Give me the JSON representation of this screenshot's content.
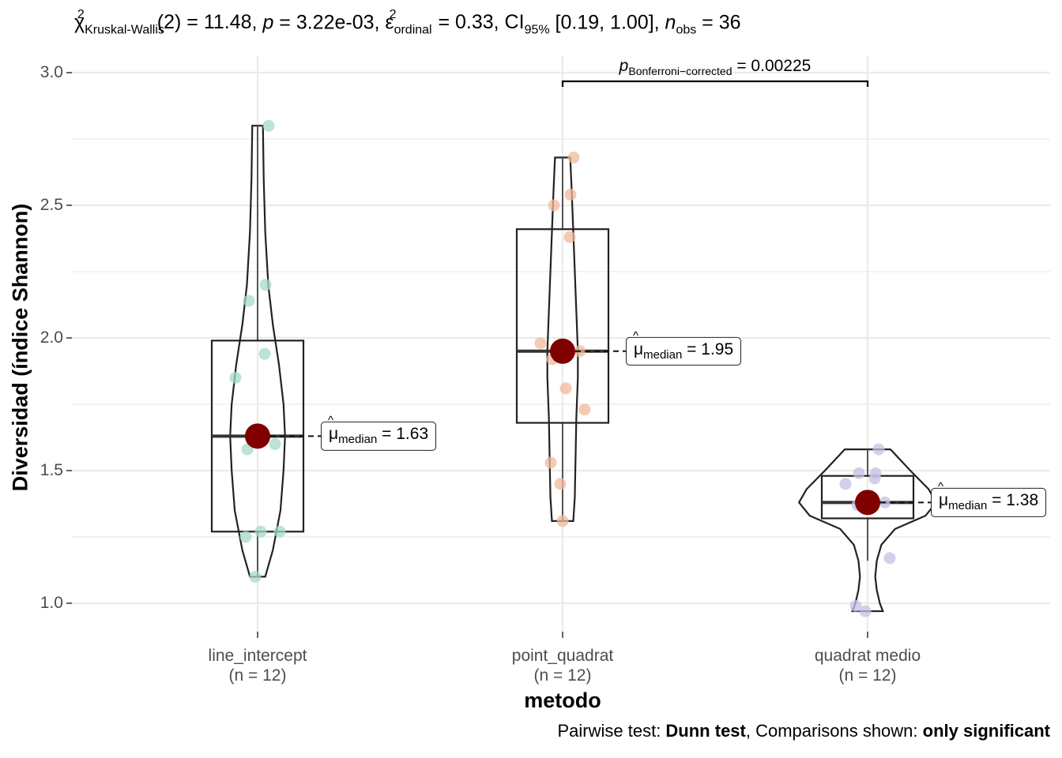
{
  "subtitle": {
    "chi": "χ",
    "chi_sup": "2",
    "chi_sub": "Kruskal-Wallis",
    "part1": "(2) = 11.48, ",
    "p": "p",
    "part2": " = 3.22e-03, ",
    "eps": "ε",
    "eps_sup": "2",
    "eps_sub": "ordinal",
    "part3": " = 0.33, CI",
    "ci_sub": "95%",
    "part4": " [0.19, 1.00], ",
    "n": "n",
    "n_sub": "obs",
    "part5": " = 36"
  },
  "caption": {
    "prefix": "Pairwise test: ",
    "test": "Dunn test",
    "mid": ", Comparisons shown: ",
    "shown": "only significant"
  },
  "pairwise": {
    "p": "p",
    "p_sub": "Bonferroni−corrected",
    "value_text": " = 0.00225",
    "from": "point_quadrat",
    "to": "quadrat medio"
  },
  "chart_data": {
    "type": "violin-box-scatter",
    "xlabel": "metodo",
    "ylabel": "Diversidad (índice Shannon)",
    "ylim": [
      0.8,
      3.07
    ],
    "yticks": [
      "1.0",
      "1.5",
      "2.0",
      "2.5",
      "3.0"
    ],
    "grid": true,
    "groups": [
      {
        "name": "line_intercept",
        "n_label": "(n = 12)",
        "color": "#a6d9c4",
        "median": 1.63,
        "median_label": "= 1.63",
        "box": {
          "q1": 1.27,
          "median": 1.63,
          "q3": 1.99,
          "whisker_low": 1.1,
          "whisker_high": 2.8
        },
        "points": [
          2.8,
          2.2,
          2.14,
          1.94,
          1.85,
          1.6,
          1.58,
          1.27,
          1.27,
          1.25,
          1.1,
          1.63
        ],
        "violin": [
          [
            1.1,
            0.05
          ],
          [
            1.2,
            0.1
          ],
          [
            1.35,
            0.15
          ],
          [
            1.5,
            0.17
          ],
          [
            1.63,
            0.18
          ],
          [
            1.75,
            0.17
          ],
          [
            1.9,
            0.14
          ],
          [
            2.05,
            0.1
          ],
          [
            2.2,
            0.07
          ],
          [
            2.4,
            0.05
          ],
          [
            2.6,
            0.04
          ],
          [
            2.8,
            0.035
          ]
        ]
      },
      {
        "name": "point_quadrat",
        "n_label": "(n = 12)",
        "color": "#f0b89c",
        "median": 1.95,
        "median_label": "= 1.95",
        "box": {
          "q1": 1.68,
          "median": 1.95,
          "q3": 2.41,
          "whisker_low": 1.31,
          "whisker_high": 2.68
        },
        "points": [
          2.68,
          2.54,
          2.5,
          2.38,
          1.98,
          1.95,
          1.92,
          1.81,
          1.73,
          1.53,
          1.45,
          1.31
        ],
        "violin": [
          [
            1.31,
            0.07
          ],
          [
            1.4,
            0.08
          ],
          [
            1.55,
            0.085
          ],
          [
            1.7,
            0.09
          ],
          [
            1.85,
            0.1
          ],
          [
            1.95,
            0.1
          ],
          [
            2.1,
            0.09
          ],
          [
            2.25,
            0.08
          ],
          [
            2.4,
            0.07
          ],
          [
            2.55,
            0.06
          ],
          [
            2.68,
            0.05
          ]
        ]
      },
      {
        "name": "quadrat medio",
        "n_label": "(n = 12)",
        "color": "#c4c2e2",
        "median": 1.38,
        "median_label": "= 1.38",
        "box": {
          "q1": 1.32,
          "median": 1.38,
          "q3": 1.48,
          "whisker_low": 1.16,
          "whisker_high": 1.58
        },
        "points": [
          1.58,
          1.49,
          1.49,
          1.47,
          1.45,
          1.38,
          1.37,
          1.36,
          1.17,
          0.99,
          0.97,
          1.38
        ],
        "violin": [
          [
            0.97,
            0.1
          ],
          [
            1.0,
            0.08
          ],
          [
            1.05,
            0.06
          ],
          [
            1.1,
            0.05
          ],
          [
            1.16,
            0.06
          ],
          [
            1.22,
            0.09
          ],
          [
            1.28,
            0.18
          ],
          [
            1.33,
            0.38
          ],
          [
            1.38,
            0.45
          ],
          [
            1.43,
            0.4
          ],
          [
            1.5,
            0.28
          ],
          [
            1.58,
            0.15
          ]
        ]
      }
    ]
  }
}
